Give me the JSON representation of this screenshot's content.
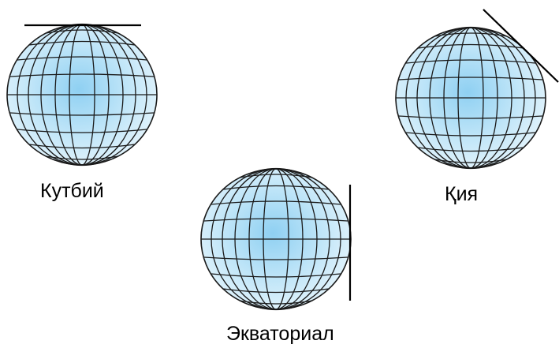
{
  "labels": {
    "polar": "Кутбий",
    "oblique": "Қия",
    "equatorial": "Экваториал"
  },
  "colors": {
    "globe_center": "#8fd0f2",
    "globe_mid": "#bfe5f8",
    "globe_edge": "#e4f4fc",
    "grid_line": "#1a1a1a",
    "plane_line": "#000000"
  }
}
